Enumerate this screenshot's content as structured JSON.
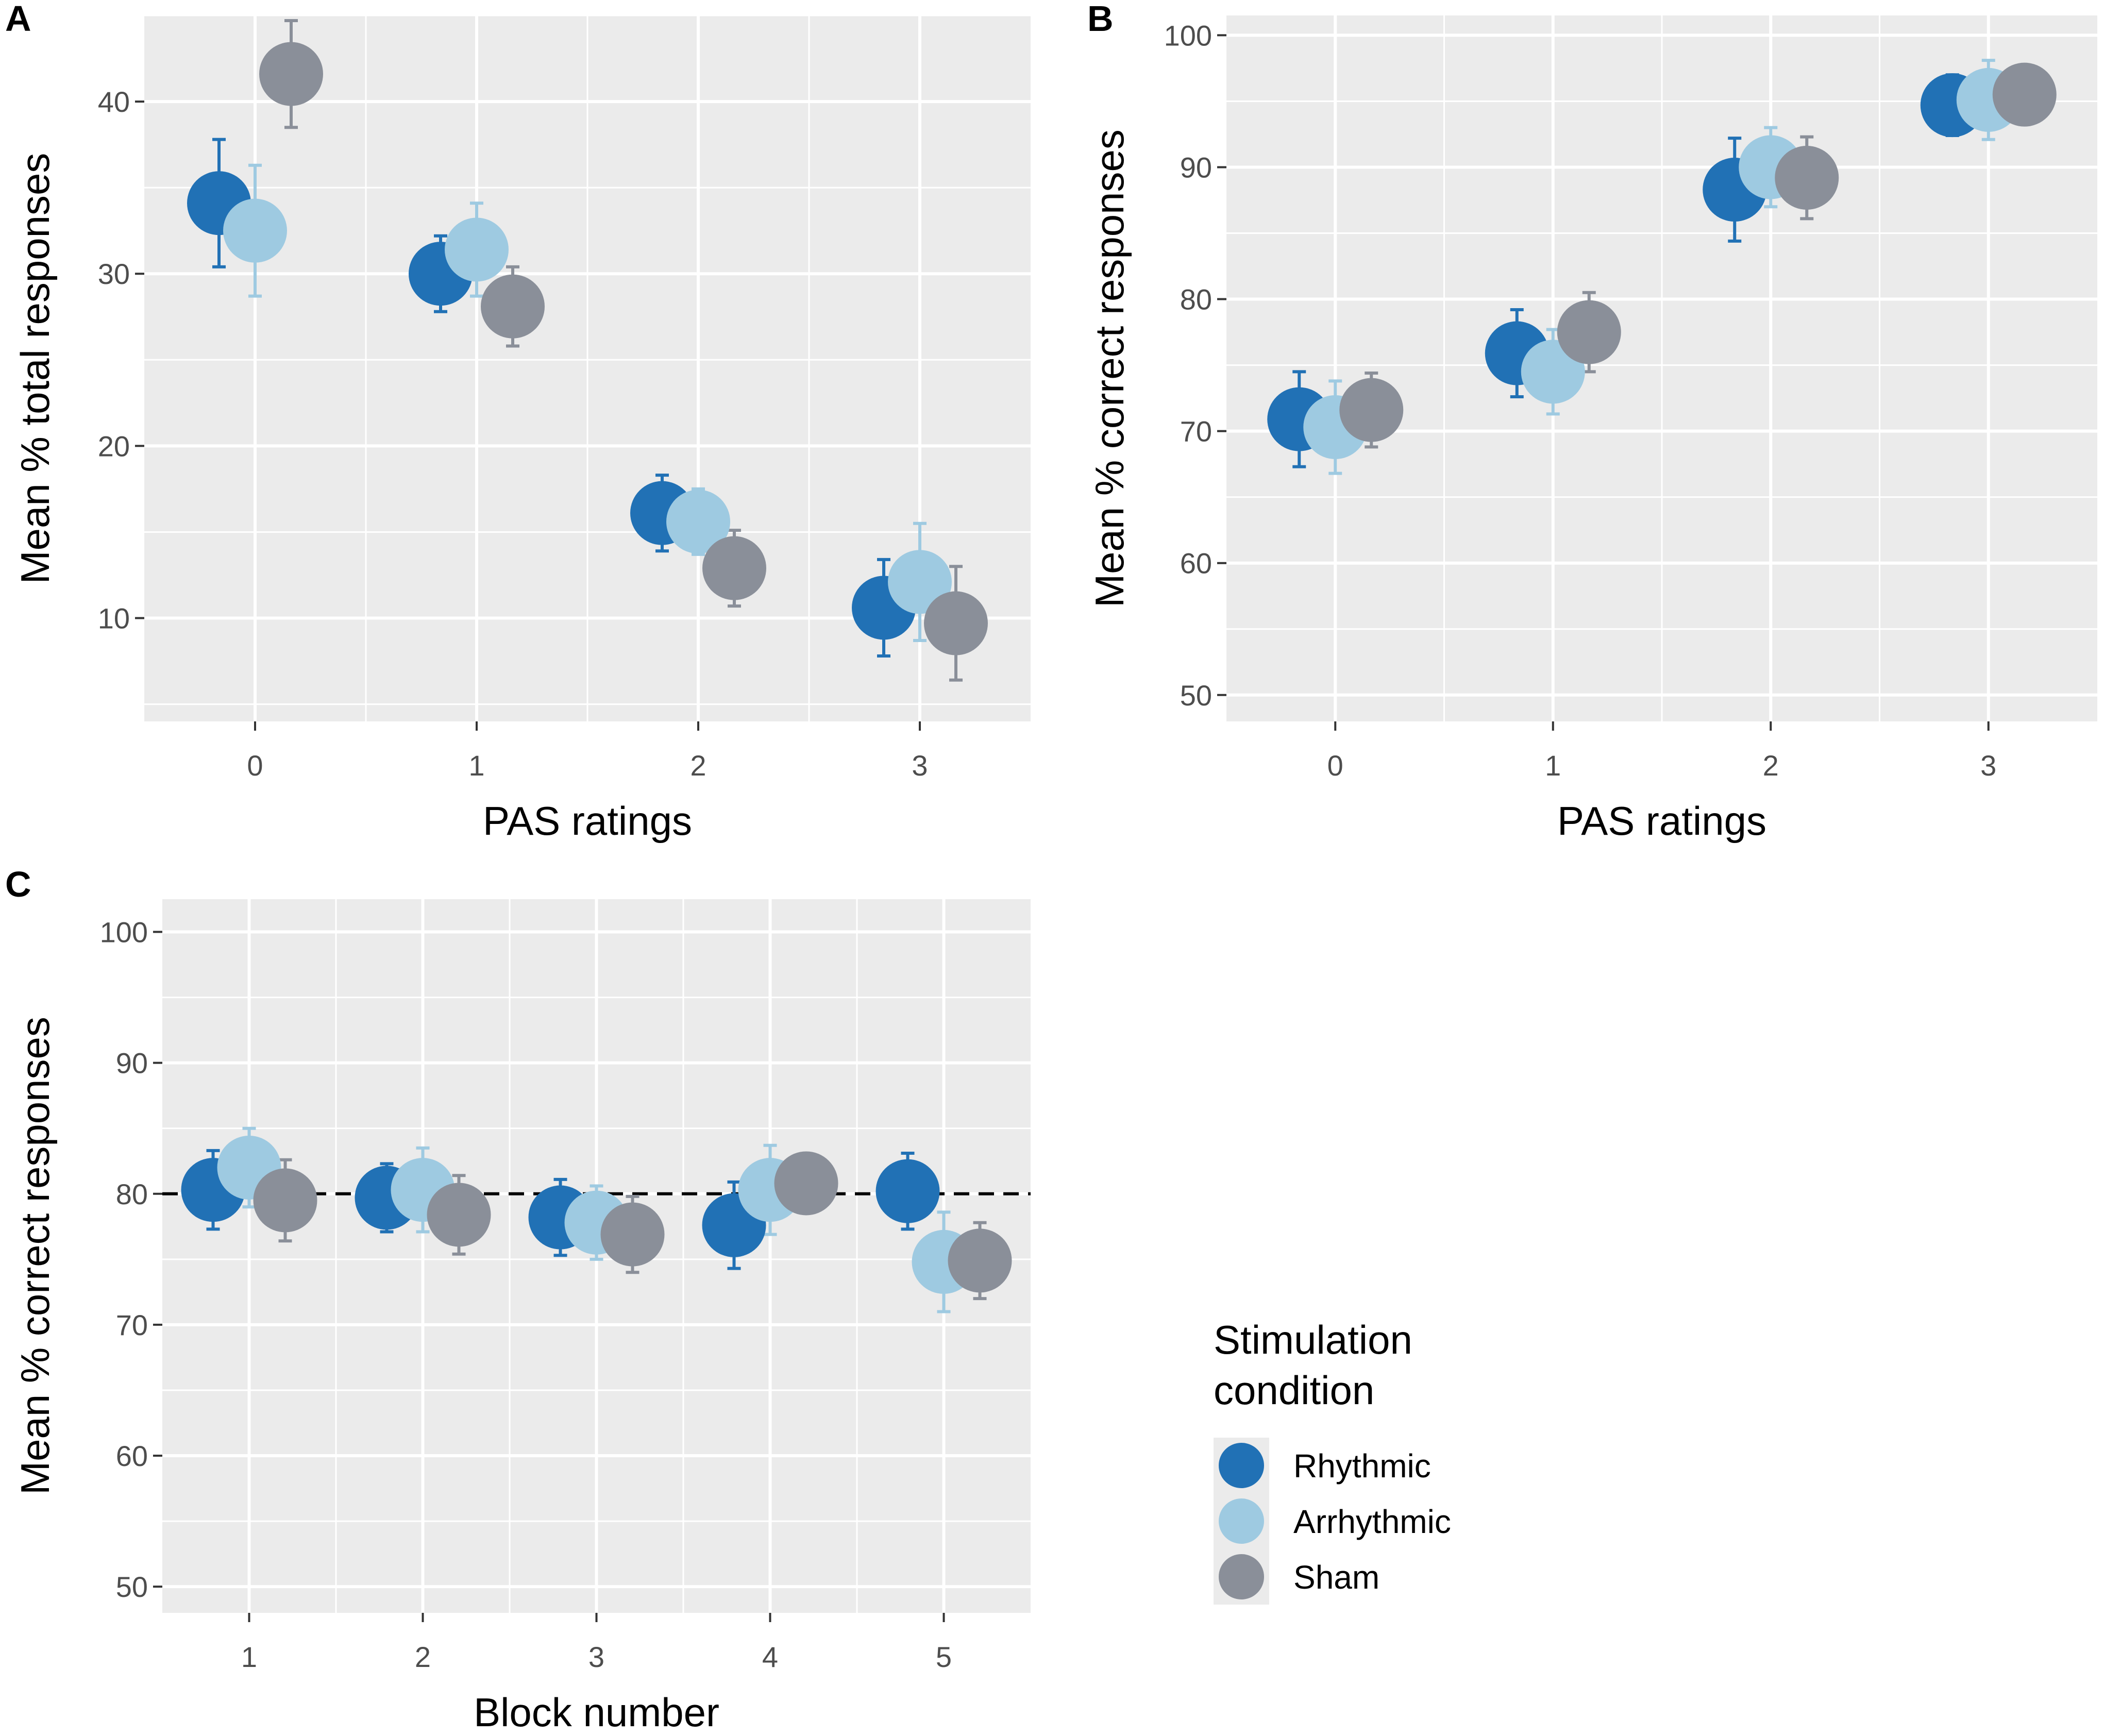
{
  "legend": {
    "title_line1": "Stimulation",
    "title_line2": "condition",
    "items": [
      {
        "label": "Rhythmic",
        "color": "#2171b5"
      },
      {
        "label": "Arrhythmic",
        "color": "#9ecae1"
      },
      {
        "label": "Sham",
        "color": "#8a8f99"
      }
    ]
  },
  "chart_data": [
    {
      "panel": "A",
      "type": "scatter",
      "xlabel": "PAS ratings",
      "ylabel": "Mean % total responses",
      "categories": [
        "0",
        "1",
        "2",
        "3"
      ],
      "ylim": [
        4,
        45
      ],
      "yticks": [
        "10",
        "20",
        "30",
        "40"
      ],
      "ytick_values": [
        10,
        20,
        30,
        40
      ],
      "series": [
        {
          "name": "Rhythmic",
          "values": [
            34.1,
            30.0,
            16.1,
            10.6
          ],
          "errors": [
            3.7,
            2.2,
            2.2,
            2.8
          ]
        },
        {
          "name": "Arrhythmic",
          "values": [
            32.5,
            31.4,
            15.6,
            12.1
          ],
          "errors": [
            3.8,
            2.7,
            1.9,
            3.4
          ]
        },
        {
          "name": "Sham",
          "values": [
            41.6,
            28.1,
            12.9,
            9.7
          ],
          "errors": [
            3.1,
            2.3,
            2.2,
            3.3
          ]
        }
      ]
    },
    {
      "panel": "B",
      "type": "scatter",
      "xlabel": "PAS ratings",
      "ylabel": "Mean % correct responses",
      "categories": [
        "0",
        "1",
        "2",
        "3"
      ],
      "ylim": [
        48,
        101.5
      ],
      "yticks": [
        "50",
        "60",
        "70",
        "80",
        "90",
        "100"
      ],
      "ytick_values": [
        50,
        60,
        70,
        80,
        90,
        100
      ],
      "series": [
        {
          "name": "Rhythmic",
          "values": [
            70.9,
            75.9,
            88.3,
            94.7
          ],
          "errors": [
            3.6,
            3.3,
            3.9,
            2.3
          ]
        },
        {
          "name": "Arrhythmic",
          "values": [
            70.3,
            74.5,
            90.0,
            95.1
          ],
          "errors": [
            3.5,
            3.2,
            3.0,
            3.0
          ]
        },
        {
          "name": "Sham",
          "values": [
            71.6,
            77.5,
            89.2,
            95.5
          ],
          "errors": [
            2.8,
            3.0,
            3.1,
            1.5
          ]
        }
      ]
    },
    {
      "panel": "C",
      "type": "scatter",
      "xlabel": "Block number",
      "ylabel": "Mean % correct responses",
      "categories": [
        "1",
        "2",
        "3",
        "4",
        "5"
      ],
      "ylim": [
        48,
        102.5
      ],
      "yticks": [
        "50",
        "60",
        "70",
        "80",
        "90",
        "100"
      ],
      "ytick_values": [
        50,
        60,
        70,
        80,
        90,
        100
      ],
      "reference_line": {
        "y": 80,
        "style": "dashed"
      },
      "series": [
        {
          "name": "Rhythmic",
          "values": [
            80.3,
            79.7,
            78.2,
            77.6,
            80.2
          ],
          "errors": [
            3.0,
            2.6,
            2.9,
            3.3,
            2.9
          ]
        },
        {
          "name": "Arrhythmic",
          "values": [
            82.0,
            80.3,
            77.8,
            80.3,
            74.8
          ],
          "errors": [
            3.0,
            3.2,
            2.8,
            3.4,
            3.8
          ]
        },
        {
          "name": "Sham",
          "values": [
            79.5,
            78.4,
            76.9,
            80.8,
            74.9
          ],
          "errors": [
            3.1,
            3.0,
            2.9,
            2.2,
            2.9
          ]
        }
      ]
    }
  ]
}
